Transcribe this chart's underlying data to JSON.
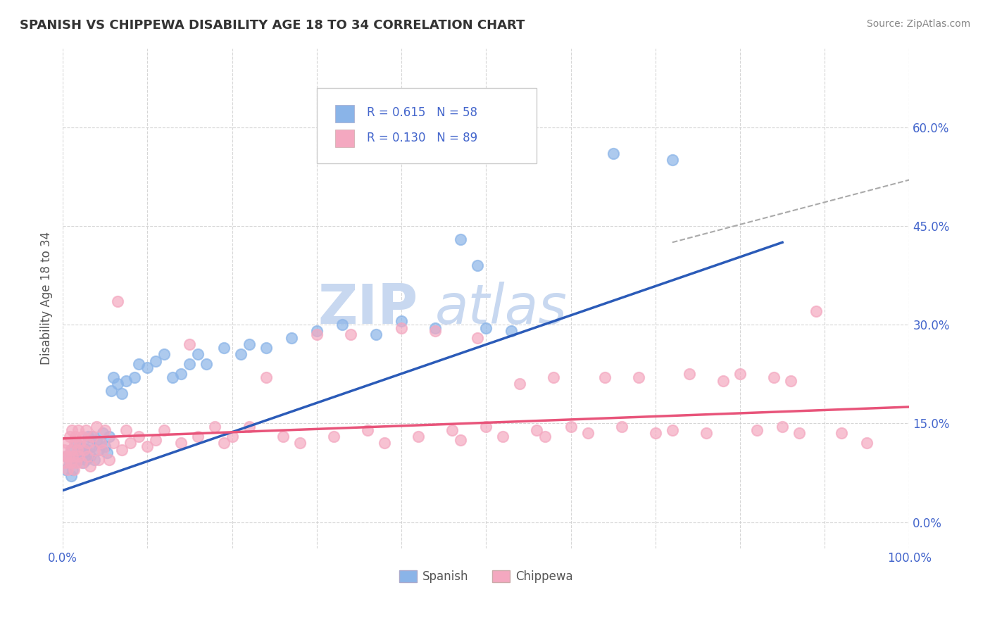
{
  "title": "SPANISH VS CHIPPEWA DISABILITY AGE 18 TO 34 CORRELATION CHART",
  "source": "Source: ZipAtlas.com",
  "ylabel": "Disability Age 18 to 34",
  "xlim": [
    0.0,
    1.0
  ],
  "ylim": [
    -0.04,
    0.72
  ],
  "xtick_positions": [
    0.0,
    0.1,
    0.2,
    0.3,
    0.4,
    0.5,
    0.6,
    0.7,
    0.8,
    0.9,
    1.0
  ],
  "xticklabels_ends": {
    "0.0": "0.0%",
    "1.0": "100.0%"
  },
  "ytick_positions": [
    0.0,
    0.15,
    0.3,
    0.45,
    0.6
  ],
  "yticklabels": [
    "0.0%",
    "15.0%",
    "30.0%",
    "45.0%",
    "60.0%"
  ],
  "spanish_R": 0.615,
  "spanish_N": 58,
  "chippewa_R": 0.13,
  "chippewa_N": 89,
  "spanish_color": "#8AB4E8",
  "chippewa_color": "#F4A8C0",
  "spanish_line_color": "#2B5BB8",
  "chippewa_line_color": "#E8547A",
  "trend_line_color": "#AAAAAA",
  "watermark_color": "#C8D8F0",
  "background_color": "#ffffff",
  "grid_color": "#cccccc",
  "legend_color": "#4466CC",
  "title_color": "#333333",
  "tick_label_color": "#4466CC",
  "spanish_scatter": [
    [
      0.003,
      0.08
    ],
    [
      0.005,
      0.1
    ],
    [
      0.008,
      0.09
    ],
    [
      0.01,
      0.07
    ],
    [
      0.01,
      0.11
    ],
    [
      0.012,
      0.08
    ],
    [
      0.015,
      0.095
    ],
    [
      0.016,
      0.12
    ],
    [
      0.018,
      0.095
    ],
    [
      0.02,
      0.1
    ],
    [
      0.022,
      0.115
    ],
    [
      0.024,
      0.09
    ],
    [
      0.025,
      0.105
    ],
    [
      0.027,
      0.095
    ],
    [
      0.028,
      0.11
    ],
    [
      0.03,
      0.13
    ],
    [
      0.032,
      0.1
    ],
    [
      0.034,
      0.115
    ],
    [
      0.035,
      0.13
    ],
    [
      0.037,
      0.095
    ],
    [
      0.04,
      0.125
    ],
    [
      0.042,
      0.11
    ],
    [
      0.045,
      0.12
    ],
    [
      0.047,
      0.135
    ],
    [
      0.05,
      0.115
    ],
    [
      0.052,
      0.105
    ],
    [
      0.055,
      0.13
    ],
    [
      0.057,
      0.2
    ],
    [
      0.06,
      0.22
    ],
    [
      0.065,
      0.21
    ],
    [
      0.07,
      0.195
    ],
    [
      0.075,
      0.215
    ],
    [
      0.085,
      0.22
    ],
    [
      0.09,
      0.24
    ],
    [
      0.1,
      0.235
    ],
    [
      0.11,
      0.245
    ],
    [
      0.12,
      0.255
    ],
    [
      0.13,
      0.22
    ],
    [
      0.14,
      0.225
    ],
    [
      0.15,
      0.24
    ],
    [
      0.16,
      0.255
    ],
    [
      0.17,
      0.24
    ],
    [
      0.19,
      0.265
    ],
    [
      0.21,
      0.255
    ],
    [
      0.22,
      0.27
    ],
    [
      0.24,
      0.265
    ],
    [
      0.27,
      0.28
    ],
    [
      0.3,
      0.29
    ],
    [
      0.33,
      0.3
    ],
    [
      0.37,
      0.285
    ],
    [
      0.4,
      0.305
    ],
    [
      0.44,
      0.295
    ],
    [
      0.47,
      0.43
    ],
    [
      0.49,
      0.39
    ],
    [
      0.5,
      0.295
    ],
    [
      0.53,
      0.29
    ],
    [
      0.65,
      0.56
    ],
    [
      0.72,
      0.55
    ]
  ],
  "chippewa_scatter": [
    [
      0.002,
      0.11
    ],
    [
      0.003,
      0.09
    ],
    [
      0.004,
      0.1
    ],
    [
      0.005,
      0.12
    ],
    [
      0.006,
      0.08
    ],
    [
      0.007,
      0.1
    ],
    [
      0.008,
      0.13
    ],
    [
      0.009,
      0.09
    ],
    [
      0.01,
      0.11
    ],
    [
      0.011,
      0.14
    ],
    [
      0.012,
      0.1
    ],
    [
      0.013,
      0.08
    ],
    [
      0.014,
      0.12
    ],
    [
      0.015,
      0.13
    ],
    [
      0.016,
      0.09
    ],
    [
      0.017,
      0.11
    ],
    [
      0.018,
      0.14
    ],
    [
      0.019,
      0.1
    ],
    [
      0.02,
      0.12
    ],
    [
      0.022,
      0.09
    ],
    [
      0.023,
      0.13
    ],
    [
      0.025,
      0.11
    ],
    [
      0.027,
      0.14
    ],
    [
      0.029,
      0.1
    ],
    [
      0.03,
      0.12
    ],
    [
      0.032,
      0.085
    ],
    [
      0.035,
      0.13
    ],
    [
      0.037,
      0.11
    ],
    [
      0.04,
      0.145
    ],
    [
      0.042,
      0.095
    ],
    [
      0.045,
      0.12
    ],
    [
      0.047,
      0.11
    ],
    [
      0.05,
      0.14
    ],
    [
      0.055,
      0.095
    ],
    [
      0.06,
      0.12
    ],
    [
      0.065,
      0.335
    ],
    [
      0.07,
      0.11
    ],
    [
      0.075,
      0.14
    ],
    [
      0.08,
      0.12
    ],
    [
      0.09,
      0.13
    ],
    [
      0.1,
      0.115
    ],
    [
      0.11,
      0.125
    ],
    [
      0.12,
      0.14
    ],
    [
      0.14,
      0.12
    ],
    [
      0.15,
      0.27
    ],
    [
      0.16,
      0.13
    ],
    [
      0.18,
      0.145
    ],
    [
      0.19,
      0.12
    ],
    [
      0.2,
      0.13
    ],
    [
      0.22,
      0.145
    ],
    [
      0.24,
      0.22
    ],
    [
      0.26,
      0.13
    ],
    [
      0.28,
      0.12
    ],
    [
      0.3,
      0.285
    ],
    [
      0.32,
      0.13
    ],
    [
      0.34,
      0.285
    ],
    [
      0.36,
      0.14
    ],
    [
      0.38,
      0.12
    ],
    [
      0.4,
      0.295
    ],
    [
      0.42,
      0.13
    ],
    [
      0.44,
      0.29
    ],
    [
      0.46,
      0.14
    ],
    [
      0.47,
      0.125
    ],
    [
      0.49,
      0.28
    ],
    [
      0.5,
      0.145
    ],
    [
      0.52,
      0.13
    ],
    [
      0.54,
      0.21
    ],
    [
      0.56,
      0.14
    ],
    [
      0.57,
      0.13
    ],
    [
      0.58,
      0.22
    ],
    [
      0.6,
      0.145
    ],
    [
      0.62,
      0.135
    ],
    [
      0.64,
      0.22
    ],
    [
      0.66,
      0.145
    ],
    [
      0.68,
      0.22
    ],
    [
      0.7,
      0.135
    ],
    [
      0.72,
      0.14
    ],
    [
      0.74,
      0.225
    ],
    [
      0.76,
      0.135
    ],
    [
      0.78,
      0.215
    ],
    [
      0.8,
      0.225
    ],
    [
      0.82,
      0.14
    ],
    [
      0.84,
      0.22
    ],
    [
      0.85,
      0.145
    ],
    [
      0.86,
      0.215
    ],
    [
      0.87,
      0.135
    ],
    [
      0.89,
      0.32
    ],
    [
      0.92,
      0.135
    ],
    [
      0.95,
      0.12
    ]
  ],
  "spanish_trendline": [
    0.0,
    0.048,
    0.85,
    0.425
  ],
  "chippewa_trendline": [
    0.0,
    0.127,
    1.0,
    0.175
  ],
  "dashed_line": [
    0.72,
    0.425,
    1.0,
    0.52
  ]
}
